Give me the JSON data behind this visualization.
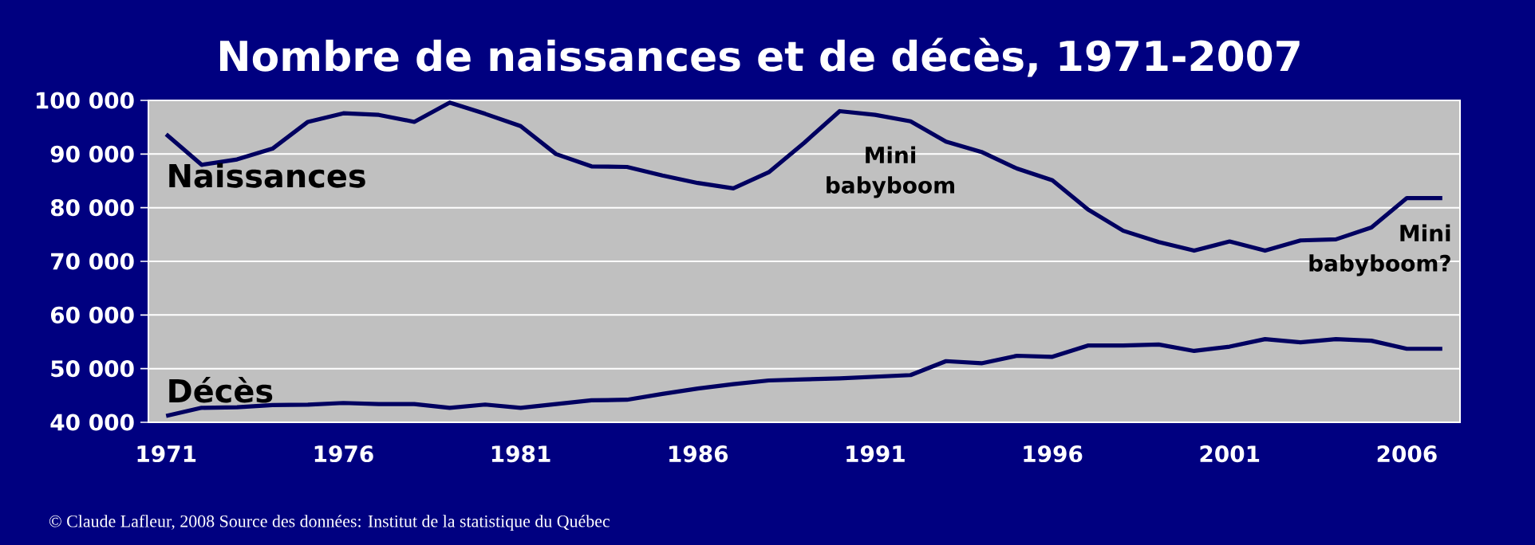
{
  "chart_data": {
    "type": "line",
    "title": "Nombre de naissances et de décès, 1971-2007",
    "x": [
      1971,
      1972,
      1973,
      1974,
      1975,
      1976,
      1977,
      1978,
      1979,
      1980,
      1981,
      1982,
      1983,
      1984,
      1985,
      1986,
      1987,
      1988,
      1989,
      1990,
      1991,
      1992,
      1993,
      1994,
      1995,
      1996,
      1997,
      1998,
      1999,
      2000,
      2001,
      2002,
      2003,
      2004,
      2005,
      2006,
      2007
    ],
    "series": [
      {
        "name": "Naissances",
        "color": "#000060",
        "values": [
          93700,
          88000,
          89000,
          91000,
          96000,
          97600,
          97300,
          96000,
          99600,
          97500,
          95200,
          90000,
          87700,
          87600,
          86000,
          84600,
          83600,
          86600,
          92100,
          98000,
          97300,
          96100,
          92300,
          90400,
          87300,
          85100,
          79700,
          75700,
          73600,
          72000,
          73700,
          72000,
          73900,
          74100,
          76300,
          81800,
          81800
        ]
      },
      {
        "name": "Décès",
        "color": "#000060",
        "values": [
          41200,
          42700,
          42800,
          43200,
          43300,
          43600,
          43400,
          43400,
          42700,
          43300,
          42700,
          43400,
          44100,
          44200,
          45300,
          46300,
          47100,
          47800,
          48000,
          48200,
          48500,
          48800,
          51400,
          51000,
          52400,
          52200,
          54300,
          54300,
          54500,
          53300,
          54100,
          55500,
          54900,
          55500,
          55200,
          53700,
          53700
        ]
      }
    ],
    "xlim": [
      1970.5,
      2007.5
    ],
    "xticks": [
      1971,
      1976,
      1981,
      1986,
      1991,
      1996,
      2001,
      2006
    ],
    "ylim": [
      40000,
      100000
    ],
    "yticks": [
      {
        "value": 40000,
        "label": "40 000"
      },
      {
        "value": 50000,
        "label": "50 000"
      },
      {
        "value": 60000,
        "label": "60 000"
      },
      {
        "value": 70000,
        "label": "70 000"
      },
      {
        "value": 80000,
        "label": "80 000"
      },
      {
        "value": 90000,
        "label": "90 000"
      },
      {
        "value": 100000,
        "label": "100 000"
      }
    ],
    "grid": "y",
    "legend": false,
    "marker": "none",
    "line_style": "solid",
    "annotations": [
      "Mini babyboom",
      "Mini babyboom?",
      "© Claude Lafleur, 2008   Source des données: Institut de la statistique du Québec"
    ]
  }
}
